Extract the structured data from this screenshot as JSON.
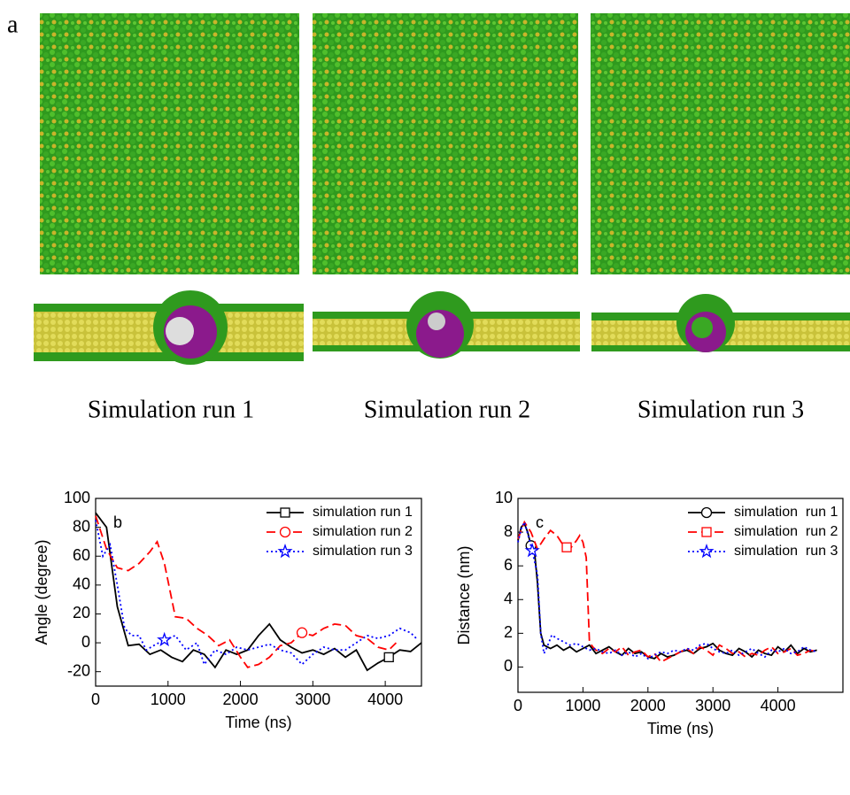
{
  "panel_label": "a",
  "captions": [
    "Simulation run 1",
    "Simulation run 2",
    "Simulation run 3"
  ],
  "chart_data": [
    {
      "type": "line",
      "panel_label": "b",
      "x_label": "Time (ns)",
      "y_label": "Angle (degree)",
      "xlim": [
        0,
        4500
      ],
      "xticks": [
        0,
        1000,
        2000,
        3000,
        4000
      ],
      "ylim": [
        -30,
        100
      ],
      "yticks": [
        -20,
        0,
        20,
        40,
        60,
        80,
        100
      ],
      "legend": "upper right",
      "series": [
        {
          "name": "simulation run 1",
          "color": "#000000",
          "dash": "solid",
          "marker": "square",
          "marker_index": 27,
          "x": [
            0,
            150,
            300,
            450,
            600,
            750,
            900,
            1050,
            1200,
            1350,
            1500,
            1650,
            1800,
            1950,
            2100,
            2250,
            2400,
            2550,
            2700,
            2850,
            3000,
            3150,
            3300,
            3450,
            3600,
            3750,
            3900,
            4050,
            4200,
            4350,
            4500
          ],
          "values": [
            90,
            80,
            25,
            -2,
            -1,
            -8,
            -5,
            -10,
            -13,
            -5,
            -8,
            -17,
            -5,
            -8,
            -5,
            5,
            13,
            2,
            -3,
            -7,
            -5,
            -8,
            -4,
            -10,
            -5,
            -19,
            -14,
            -10,
            -5,
            -6,
            0
          ]
        },
        {
          "name": "simulation run 2",
          "color": "#ff0000",
          "dash": "dashed",
          "marker": "circle",
          "marker_index": 20,
          "x": [
            0,
            150,
            300,
            450,
            600,
            750,
            850,
            950,
            1100,
            1250,
            1400,
            1550,
            1700,
            1850,
            2000,
            2100,
            2250,
            2400,
            2550,
            2700,
            2850,
            3000,
            3150,
            3300,
            3450,
            3600,
            3750,
            3900,
            4050,
            4150
          ],
          "values": [
            88,
            65,
            52,
            50,
            55,
            63,
            70,
            55,
            18,
            17,
            10,
            5,
            -2,
            2,
            -10,
            -17,
            -15,
            -10,
            -2,
            0,
            7,
            5,
            10,
            13,
            12,
            5,
            3,
            -3,
            -5,
            0
          ]
        },
        {
          "name": "simulation run 3",
          "color": "#0000ff",
          "dash": "dotted",
          "marker": "star",
          "marker_index": 9,
          "x": [
            0,
            100,
            200,
            300,
            400,
            500,
            600,
            700,
            800,
            950,
            1100,
            1250,
            1400,
            1500,
            1650,
            1800,
            1950,
            2100,
            2250,
            2400,
            2550,
            2700,
            2850,
            3000,
            3150,
            3300,
            3450,
            3600,
            3750,
            3900,
            4050,
            4200,
            4350,
            4450
          ],
          "values": [
            85,
            60,
            68,
            40,
            10,
            5,
            5,
            -5,
            -2,
            2,
            5,
            -5,
            0,
            -15,
            -5,
            -8,
            -3,
            -5,
            -3,
            -1,
            -5,
            -7,
            -15,
            -8,
            -3,
            -5,
            -5,
            0,
            5,
            3,
            5,
            10,
            7,
            2
          ]
        }
      ]
    },
    {
      "type": "line",
      "panel_label": "c",
      "x_label": "Time (ns)",
      "y_label": "Distance (nm)",
      "xlim": [
        0,
        5000
      ],
      "xticks": [
        0,
        1000,
        2000,
        3000,
        4000
      ],
      "ylim": [
        -1.5,
        10
      ],
      "yticks": [
        0,
        2,
        4,
        6,
        8,
        10
      ],
      "legend": "upper right",
      "series": [
        {
          "name": "simulation  run 1",
          "color": "#000000",
          "dash": "solid",
          "marker": "circle",
          "marker_index": 4,
          "x": [
            0,
            50,
            100,
            150,
            200,
            250,
            300,
            350,
            400,
            500,
            600,
            700,
            800,
            900,
            1000,
            1100,
            1200,
            1300,
            1400,
            1500,
            1600,
            1700,
            1800,
            1900,
            2000,
            2100,
            2200,
            2300,
            2400,
            2500,
            2600,
            2700,
            2800,
            2900,
            3000,
            3100,
            3200,
            3300,
            3400,
            3500,
            3600,
            3700,
            3800,
            3900,
            4000,
            4100,
            4200,
            4300,
            4400,
            4500,
            4600
          ],
          "values": [
            7.5,
            8.3,
            8.5,
            8.0,
            7.2,
            7.0,
            5.0,
            2.0,
            1.3,
            1.1,
            1.3,
            1.0,
            1.2,
            0.9,
            1.1,
            1.3,
            0.8,
            1.0,
            1.2,
            0.9,
            0.7,
            1.1,
            0.8,
            0.9,
            0.6,
            0.5,
            0.8,
            0.6,
            0.7,
            0.9,
            1.0,
            0.8,
            1.1,
            1.2,
            1.4,
            1.0,
            0.8,
            0.7,
            1.1,
            0.9,
            0.6,
            1.0,
            0.8,
            0.7,
            1.2,
            0.9,
            1.3,
            0.8,
            1.1,
            0.9,
            1.0
          ]
        },
        {
          "name": "simulation  run 2",
          "color": "#ff0000",
          "dash": "dashed",
          "marker": "square",
          "marker_index": 8,
          "x": [
            0,
            100,
            200,
            300,
            400,
            500,
            600,
            700,
            750,
            800,
            900,
            950,
            1000,
            1050,
            1100,
            1150,
            1200,
            1300,
            1400,
            1500,
            1600,
            1700,
            1800,
            1900,
            2000,
            2100,
            2200,
            2300,
            2400,
            2500,
            2600,
            2700,
            2800,
            2900,
            3000,
            3100,
            3200,
            3300,
            3400,
            3500,
            3600,
            3700,
            3800,
            3900,
            4000,
            4100,
            4200,
            4300,
            4400,
            4500,
            4600
          ],
          "values": [
            7.6,
            8.6,
            8.0,
            7.0,
            7.6,
            8.1,
            7.8,
            7.2,
            7.1,
            7.0,
            7.5,
            7.8,
            7.4,
            6.5,
            1.5,
            1.2,
            1.0,
            0.8,
            1.1,
            0.9,
            1.2,
            0.7,
            0.9,
            1.0,
            0.6,
            0.8,
            0.3,
            0.5,
            0.7,
            0.9,
            1.1,
            0.8,
            1.2,
            1.0,
            0.7,
            1.3,
            1.1,
            0.8,
            0.9,
            0.6,
            0.8,
            0.7,
            1.0,
            1.2,
            0.8,
            0.9,
            1.1,
            0.7,
            0.8,
            1.0,
            0.9
          ]
        },
        {
          "name": "simulation  run 3",
          "color": "#0000ff",
          "dash": "dotted",
          "marker": "star",
          "marker_index": 4,
          "x": [
            0,
            50,
            100,
            150,
            220,
            300,
            350,
            400,
            450,
            520,
            600,
            700,
            800,
            900,
            1000,
            1100,
            1200,
            1300,
            1400,
            1500,
            1600,
            1700,
            1800,
            1900,
            2000,
            2100,
            2200,
            2300,
            2400,
            2500,
            2600,
            2700,
            2800,
            2900,
            3000,
            3100,
            3200,
            3300,
            3400,
            3500,
            3600,
            3700,
            3800,
            3900,
            4000,
            4100,
            4200,
            4300,
            4400,
            4500,
            4600
          ],
          "values": [
            7.4,
            8.2,
            8.6,
            7.9,
            6.9,
            5.5,
            2.0,
            0.8,
            1.2,
            1.9,
            1.7,
            1.5,
            1.3,
            1.4,
            1.2,
            1.0,
            1.1,
            0.9,
            0.8,
            1.0,
            0.7,
            0.9,
            0.6,
            0.8,
            0.5,
            0.7,
            0.9,
            0.8,
            1.0,
            0.9,
            1.1,
            1.0,
            1.3,
            1.4,
            1.1,
            0.9,
            0.8,
            1.0,
            0.7,
            0.9,
            1.1,
            0.8,
            0.6,
            1.0,
            0.9,
            1.1,
            0.8,
            0.9,
            1.2,
            1.0,
            0.9
          ]
        }
      ]
    }
  ]
}
